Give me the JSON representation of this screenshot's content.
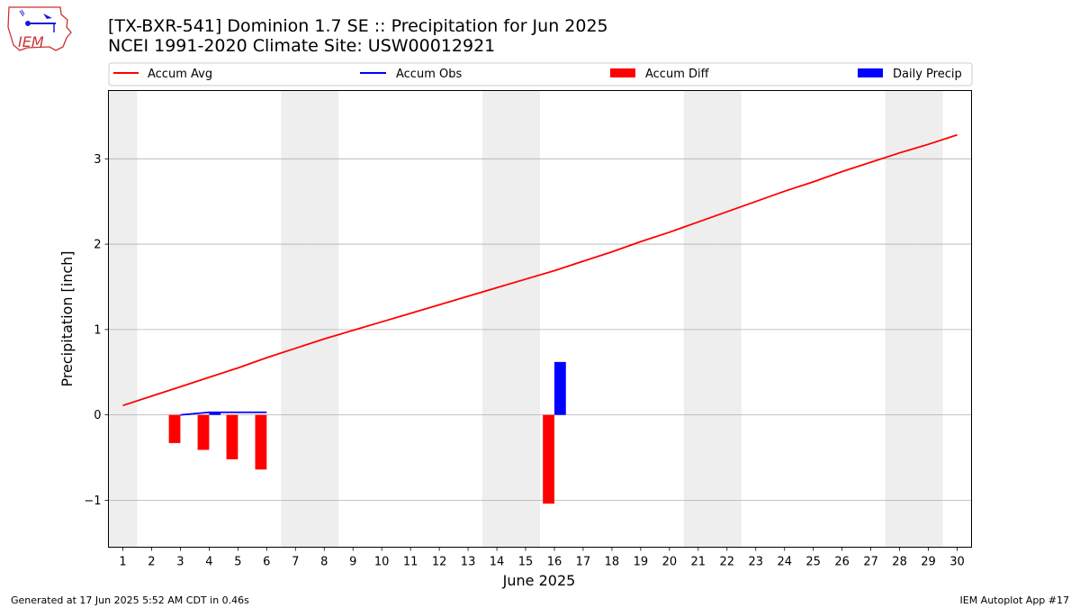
{
  "header": {
    "logo_text": "IEM",
    "title_line1": "[TX-BXR-541] Dominion 1.7 SE :: Precipitation for Jun 2025",
    "title_line2": "NCEI 1991-2020 Climate Site: USW00012921"
  },
  "footer": {
    "generated": "Generated at 17 Jun 2025 5:52 AM CDT in 0.46s",
    "app": "IEM Autoplot App #17"
  },
  "colors": {
    "accum_avg": "#ff0000",
    "accum_obs": "#0000ff",
    "accum_diff": "#ff0000",
    "daily_precip": "#0000ff",
    "weekend_band": "#eeeeee",
    "grid": "#b0b0b0"
  },
  "chart_data": {
    "type": "bar",
    "xlabel": "June 2025",
    "ylabel": "Precipitation [inch]",
    "xlim": [
      0.5,
      30.5
    ],
    "ylim": [
      -1.55,
      3.8
    ],
    "yticks": [
      -1,
      0,
      1,
      2,
      3
    ],
    "ytick_labels": [
      "−1",
      "0",
      "1",
      "2",
      "3"
    ],
    "grid": "horizontal",
    "legend_position": "top",
    "legend": [
      "Accum Avg",
      "Accum Obs",
      "Accum Diff",
      "Daily Precip"
    ],
    "x": [
      1,
      2,
      3,
      4,
      5,
      6,
      7,
      8,
      9,
      10,
      11,
      12,
      13,
      14,
      15,
      16,
      17,
      18,
      19,
      20,
      21,
      22,
      23,
      24,
      25,
      26,
      27,
      28,
      29,
      30
    ],
    "weekend_days": [
      1,
      7,
      8,
      14,
      15,
      21,
      22,
      28,
      29
    ],
    "series": [
      {
        "name": "Accum Avg",
        "kind": "line",
        "x": [
          1,
          2,
          3,
          4,
          5,
          6,
          7,
          8,
          9,
          10,
          11,
          12,
          13,
          14,
          15,
          16,
          17,
          18,
          19,
          20,
          21,
          22,
          23,
          24,
          25,
          26,
          27,
          28,
          29,
          30
        ],
        "values": [
          0.11,
          0.22,
          0.33,
          0.44,
          0.55,
          0.67,
          0.78,
          0.89,
          0.99,
          1.09,
          1.19,
          1.29,
          1.39,
          1.49,
          1.59,
          1.69,
          1.8,
          1.91,
          2.03,
          2.14,
          2.26,
          2.38,
          2.5,
          2.62,
          2.73,
          2.85,
          2.96,
          3.07,
          3.17,
          3.28
        ]
      },
      {
        "name": "Accum Obs",
        "kind": "line",
        "x": [
          3,
          4,
          5,
          6
        ],
        "values": [
          0.0,
          0.03,
          0.03,
          0.03
        ]
      },
      {
        "name": "Accum Diff",
        "kind": "bar",
        "x": [
          3,
          4,
          5,
          6,
          16
        ],
        "values": [
          -0.33,
          -0.41,
          -0.52,
          -0.64,
          -1.04
        ]
      },
      {
        "name": "Daily Precip",
        "kind": "bar",
        "x": [
          4,
          16
        ],
        "values": [
          0.03,
          0.62
        ]
      }
    ]
  }
}
